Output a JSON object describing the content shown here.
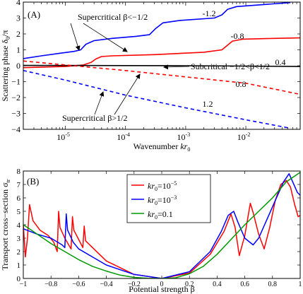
{
  "chart_data": [
    {
      "type": "line",
      "panel_label": "(A)",
      "xlabel_parts": [
        "Wavenumber ",
        "kr",
        "0"
      ],
      "ylabel_parts": [
        "Scattering phase  ",
        "δ",
        "0",
        "/π"
      ],
      "xscale": "log",
      "xlim": [
        2e-06,
        0.08
      ],
      "ylim": [
        -4,
        4
      ],
      "xtick_labels": [
        {
          "base": "10",
          "exp": "-5",
          "value": 1e-05
        },
        {
          "base": "10",
          "exp": "-4",
          "value": 0.0001
        },
        {
          "base": "10",
          "exp": "-3",
          "value": 0.001
        },
        {
          "base": "10",
          "exp": "-2",
          "value": 0.01
        }
      ],
      "yticks": [
        -4,
        -3,
        -2,
        -1,
        0,
        1,
        2,
        3,
        4
      ],
      "grid": false,
      "series": [
        {
          "label": "-1.2",
          "color": "#0000ff",
          "style": "solid",
          "points": [
            [
              2e-06,
              0.45
            ],
            [
              4e-06,
              0.62
            ],
            [
              8e-06,
              0.78
            ],
            [
              1.4e-05,
              0.9
            ],
            [
              1.8e-05,
              1.0
            ],
            [
              2.2e-05,
              1.35
            ],
            [
              3e-05,
              1.58
            ],
            [
              6e-05,
              1.72
            ],
            [
              0.00015,
              1.85
            ],
            [
              0.00025,
              1.95
            ],
            [
              0.00032,
              2.35
            ],
            [
              0.00042,
              2.7
            ],
            [
              0.0008,
              2.85
            ],
            [
              0.003,
              3.0
            ],
            [
              0.004,
              3.2
            ],
            [
              0.005,
              3.55
            ],
            [
              0.007,
              3.72
            ],
            [
              0.02,
              3.85
            ],
            [
              0.055,
              3.97
            ]
          ]
        },
        {
          "label": "-0.8",
          "color": "#ff0000",
          "style": "solid",
          "points": [
            [
              2e-06,
              -0.12
            ],
            [
              1e-05,
              -0.05
            ],
            [
              2e-05,
              0.05
            ],
            [
              2.7e-05,
              0.22
            ],
            [
              3.2e-05,
              0.42
            ],
            [
              4e-05,
              0.58
            ],
            [
              6e-05,
              0.62
            ],
            [
              0.0003,
              0.7
            ],
            [
              0.002,
              0.85
            ],
            [
              0.004,
              1.0
            ],
            [
              0.005,
              1.3
            ],
            [
              0.006,
              1.55
            ],
            [
              0.009,
              1.67
            ],
            [
              0.03,
              1.72
            ],
            [
              0.08,
              1.75
            ]
          ]
        },
        {
          "label": "0.4",
          "color": "#000000",
          "style": "solid",
          "points": [
            [
              2e-06,
              0.02
            ],
            [
              0.0001,
              0.01
            ],
            [
              0.001,
              0.0
            ],
            [
              0.01,
              -0.02
            ],
            [
              0.08,
              -0.05
            ]
          ]
        },
        {
          "label": "0.8",
          "color": "#ff0000",
          "style": "dashed",
          "points": [
            [
              2e-06,
              0.3
            ],
            [
              1e-05,
              0.05
            ],
            [
              0.0001,
              -0.3
            ],
            [
              0.001,
              -0.7
            ],
            [
              0.01,
              -1.1
            ],
            [
              0.08,
              -1.8
            ]
          ]
        },
        {
          "label": "1.2",
          "color": "#0000ff",
          "style": "dashed",
          "points": [
            [
              2e-06,
              -0.3
            ],
            [
              1e-05,
              -0.9
            ],
            [
              0.0001,
              -1.85
            ],
            [
              0.001,
              -2.65
            ],
            [
              0.01,
              -3.4
            ],
            [
              0.05,
              -3.9
            ]
          ]
        }
      ],
      "annotations": [
        {
          "text": "Supercritical β<−1/2",
          "x": 1.2e-05,
          "y": 2.9
        },
        {
          "text": "Subcritical  −1/2<β<1/2",
          "x": 0.00045,
          "y": 0.08
        },
        {
          "text": "Supercritical β>1/2",
          "x": 4e-06,
          "y": -3.3
        }
      ]
    },
    {
      "type": "line",
      "panel_label": "(B)",
      "xlabel": "Potential strength β",
      "ylabel_parts": [
        "Transport cross−section  σ",
        "tr"
      ],
      "xlim": [
        -1,
        1
      ],
      "ylim": [
        0,
        8
      ],
      "xticks": [
        -1,
        -0.8,
        -0.6,
        -0.4,
        -0.2,
        0,
        0.2,
        0.4,
        0.6,
        0.8,
        1
      ],
      "xtick_labels": [
        "−1",
        "−0.8",
        "−0.6",
        "−0.4",
        "−0.2",
        "0",
        "0.2",
        "0.4",
        "0.6",
        "0.8",
        "1"
      ],
      "yticks": [
        0,
        1,
        2,
        3,
        4,
        5,
        6,
        7,
        8
      ],
      "grid": false,
      "legend_position": "top-center",
      "series": [
        {
          "name_parts": [
            "kr",
            "0",
            "=10",
            "−5"
          ],
          "color": "#ff0000",
          "points": [
            [
              -1,
              4.0
            ],
            [
              -0.985,
              1.6
            ],
            [
              -0.97,
              3.0
            ],
            [
              -0.955,
              5.5
            ],
            [
              -0.93,
              4.3
            ],
            [
              -0.88,
              3.6
            ],
            [
              -0.82,
              3.2
            ],
            [
              -0.78,
              2.7
            ],
            [
              -0.755,
              2.0
            ],
            [
              -0.745,
              5.0
            ],
            [
              -0.735,
              3.8
            ],
            [
              -0.7,
              3.0
            ],
            [
              -0.655,
              2.2
            ],
            [
              -0.645,
              4.6
            ],
            [
              -0.635,
              3.6
            ],
            [
              -0.6,
              2.9
            ],
            [
              -0.57,
              2.3
            ],
            [
              -0.56,
              3.9
            ],
            [
              -0.55,
              2.8
            ],
            [
              -0.4,
              1.3
            ],
            [
              -0.2,
              0.3
            ],
            [
              0,
              0.0
            ],
            [
              0.2,
              0.4
            ],
            [
              0.35,
              1.8
            ],
            [
              0.45,
              3.5
            ],
            [
              0.5,
              4.8
            ],
            [
              0.53,
              3.8
            ],
            [
              0.56,
              1.7
            ],
            [
              0.6,
              3.2
            ],
            [
              0.64,
              5.6
            ],
            [
              0.66,
              4.9
            ],
            [
              0.7,
              3.3
            ],
            [
              0.74,
              2.2
            ],
            [
              0.78,
              3.8
            ],
            [
              0.82,
              5.8
            ],
            [
              0.86,
              7.0
            ],
            [
              0.9,
              7.3
            ],
            [
              0.93,
              6.8
            ],
            [
              0.96,
              5.5
            ],
            [
              0.985,
              4.6
            ],
            [
              1,
              4.7
            ]
          ]
        },
        {
          "name_parts": [
            "kr",
            "0",
            "=10",
            "−3"
          ],
          "color": "#0000ff",
          "points": [
            [
              -1,
              3.7
            ],
            [
              -0.9,
              3.3
            ],
            [
              -0.8,
              3.0
            ],
            [
              -0.72,
              2.5
            ],
            [
              -0.7,
              2.3
            ],
            [
              -0.69,
              4.8
            ],
            [
              -0.68,
              3.6
            ],
            [
              -0.64,
              2.7
            ],
            [
              -0.6,
              2.2
            ],
            [
              -0.5,
              1.6
            ],
            [
              -0.4,
              1.0
            ],
            [
              -0.2,
              0.3
            ],
            [
              0,
              0.0
            ],
            [
              0.2,
              0.5
            ],
            [
              0.35,
              2.0
            ],
            [
              0.43,
              3.5
            ],
            [
              0.48,
              4.7
            ],
            [
              0.52,
              5.0
            ],
            [
              0.55,
              4.2
            ],
            [
              0.6,
              3.0
            ],
            [
              0.66,
              2.5
            ],
            [
              0.7,
              3.0
            ],
            [
              0.76,
              4.4
            ],
            [
              0.82,
              5.8
            ],
            [
              0.88,
              7.2
            ],
            [
              0.92,
              7.8
            ],
            [
              0.95,
              7.1
            ],
            [
              0.98,
              6.4
            ],
            [
              1,
              6.2
            ]
          ]
        },
        {
          "name_parts": [
            "kr",
            "0",
            "=0.1"
          ],
          "color": "#009900",
          "points": [
            [
              -1,
              4.0
            ],
            [
              -0.9,
              3.3
            ],
            [
              -0.8,
              2.6
            ],
            [
              -0.7,
              2.0
            ],
            [
              -0.6,
              1.4
            ],
            [
              -0.5,
              0.9
            ],
            [
              -0.4,
              0.55
            ],
            [
              -0.3,
              0.25
            ],
            [
              -0.2,
              0.08
            ],
            [
              -0.1,
              0.01
            ],
            [
              0,
              0.0
            ],
            [
              0.1,
              0.05
            ],
            [
              0.2,
              0.35
            ],
            [
              0.3,
              0.9
            ],
            [
              0.4,
              1.8
            ],
            [
              0.5,
              2.9
            ],
            [
              0.6,
              4.0
            ],
            [
              0.7,
              5.0
            ],
            [
              0.8,
              6.0
            ],
            [
              0.9,
              7.2
            ],
            [
              1,
              7.9
            ]
          ]
        }
      ]
    }
  ]
}
